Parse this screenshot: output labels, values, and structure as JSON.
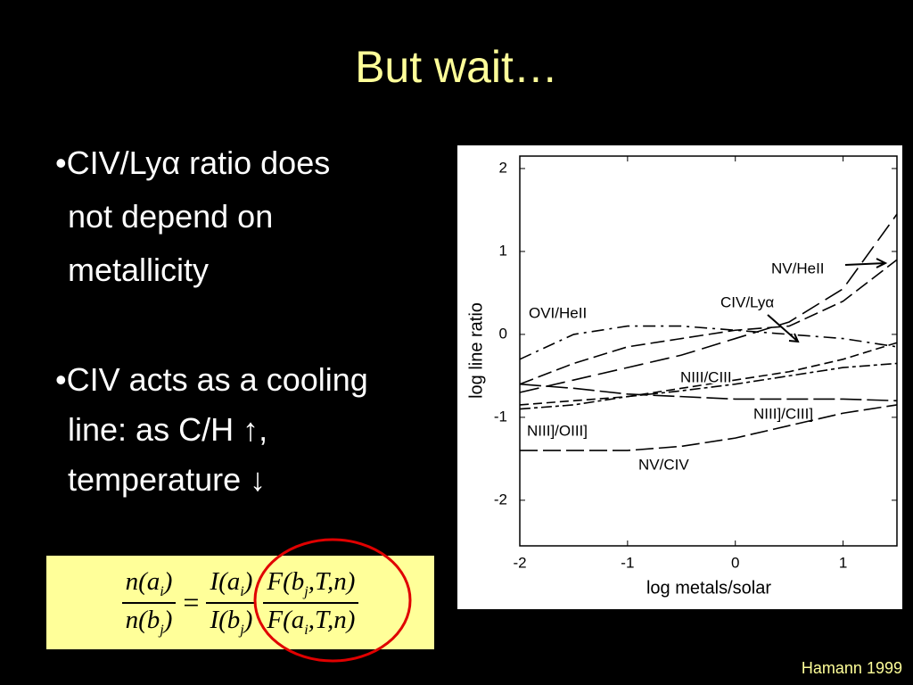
{
  "title": "But wait…",
  "bullets": [
    {
      "lines": [
        "•CIV/Lyα ratio does",
        "not depend on",
        "metallicity"
      ]
    },
    {
      "lines": [
        "•CIV acts as a cooling",
        "line: as C/H ↑,",
        "temperature ↓"
      ]
    }
  ],
  "equation": {
    "equals": "=",
    "fractions": [
      {
        "num": [
          "n(a",
          "i",
          ")"
        ],
        "den": [
          "n(b",
          "j",
          ")"
        ]
      },
      {
        "num": [
          "I(a",
          "i",
          ")"
        ],
        "den": [
          "I(b",
          "j",
          ")"
        ]
      },
      {
        "num": [
          "F(b",
          "j",
          ",T,n)"
        ],
        "den": [
          "F(a",
          "i",
          ",T,n)"
        ]
      }
    ]
  },
  "credit": "Hamann 1999",
  "chart_data": {
    "type": "line",
    "xlabel": "log metals/solar",
    "ylabel": "log line ratio",
    "xlim": [
      -2,
      1.5
    ],
    "ylim": [
      -2.55,
      2.15
    ],
    "xticks": [
      -2,
      -1,
      0,
      1
    ],
    "yticks": [
      -2,
      -1,
      0,
      1,
      2
    ],
    "x": [
      -2,
      -1.5,
      -1,
      -0.5,
      0,
      0.5,
      1,
      1.5
    ],
    "series": [
      {
        "name": "OVI/HeII",
        "color": "#000000",
        "values": [
          -0.3,
          0.0,
          0.1,
          0.1,
          0.05,
          0.0,
          -0.05,
          -0.15
        ]
      },
      {
        "name": "CIV/Lyα",
        "color": "#000000",
        "values": [
          -0.6,
          -0.35,
          -0.15,
          -0.05,
          0.05,
          0.1,
          0.4,
          0.9
        ]
      },
      {
        "name": "NV/HeII",
        "color": "#000000",
        "values": [
          -0.7,
          -0.55,
          -0.4,
          -0.25,
          -0.05,
          0.15,
          0.55,
          1.45
        ]
      },
      {
        "name": "NIII/CIII",
        "color": "#000000",
        "values": [
          -0.85,
          -0.8,
          -0.75,
          -0.65,
          -0.55,
          -0.45,
          -0.3,
          -0.1
        ]
      },
      {
        "name": "NIII]/CIII]",
        "color": "#000000",
        "values": [
          -0.6,
          -0.65,
          -0.72,
          -0.75,
          -0.78,
          -0.78,
          -0.78,
          -0.8
        ]
      },
      {
        "name": "NIII]/OIII]",
        "color": "#000000",
        "values": [
          -0.9,
          -0.85,
          -0.75,
          -0.68,
          -0.6,
          -0.5,
          -0.4,
          -0.35
        ]
      },
      {
        "name": "NV/CIV",
        "color": "#000000",
        "values": [
          -1.4,
          -1.4,
          -1.4,
          -1.35,
          -1.25,
          -1.1,
          -0.95,
          -0.85
        ]
      }
    ]
  }
}
